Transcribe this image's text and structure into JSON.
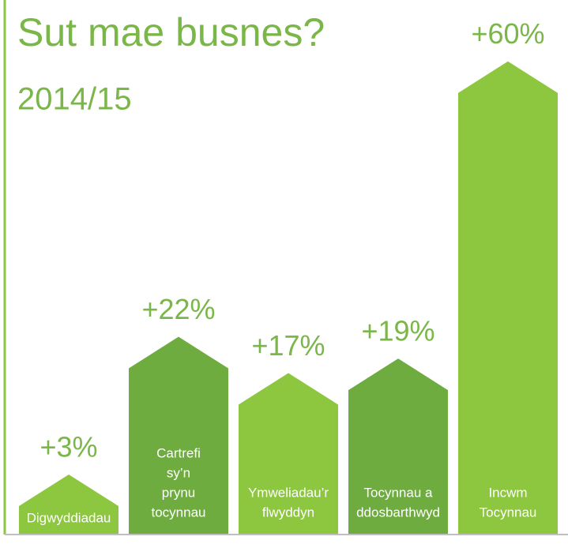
{
  "chart_data": {
    "type": "arrow-bar",
    "title": "Sut mae busnes?",
    "subtitle": "2014/15",
    "categories": [
      [
        "Digwyddiadau"
      ],
      [
        "Cartrefi",
        "sy’n",
        "prynu",
        "tocynnau"
      ],
      [
        "Ymweliadau’r",
        "flwyddyn"
      ],
      [
        "Tocynnau a",
        "ddosbarthwyd"
      ],
      [
        "Incwm",
        "Tocynnau"
      ]
    ],
    "values": [
      3,
      22,
      17,
      19,
      60
    ],
    "value_labels": [
      "+3%",
      "+22%",
      "+17%",
      "+19%",
      "+60%"
    ],
    "colors": [
      "#8dc63f",
      "#6fac40",
      "#8dc63f",
      "#6fac40",
      "#8dc63f"
    ]
  }
}
